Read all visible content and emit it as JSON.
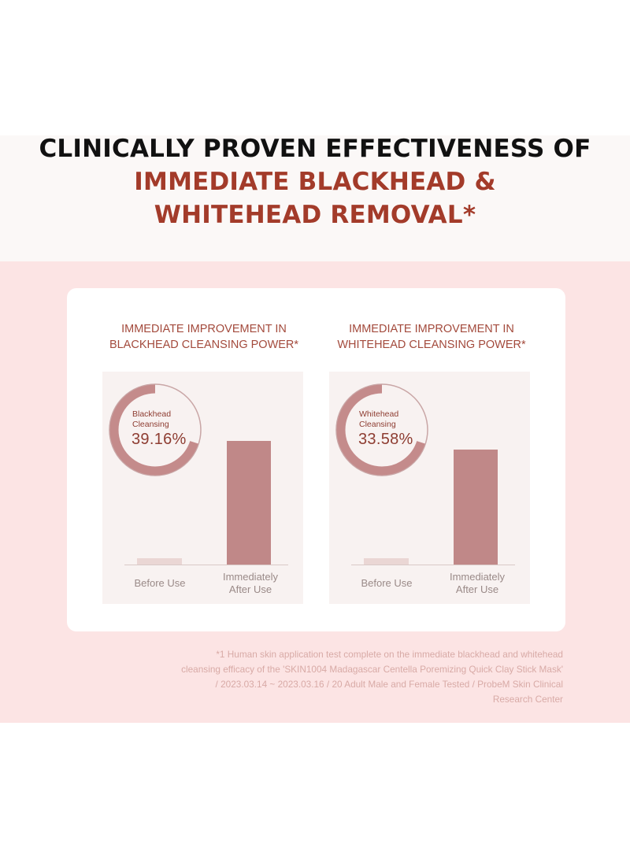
{
  "headline": {
    "line1": "CLINICALLY PROVEN EFFECTIVENESS OF",
    "line2": "IMMEDIATE BLACKHEAD &",
    "line3": "WHITEHEAD REMOVAL*"
  },
  "colors": {
    "headline_dark": "#111111",
    "headline_accent": "#a33b2a",
    "band_pink": "#fce4e4",
    "ring_track": "#c9a6a6",
    "ring_fill": "#c48b8b",
    "bar_before": "#ead6d4",
    "bar_after": "#c08888",
    "label_text": "#8e3d32"
  },
  "chart_data": [
    {
      "type": "bar",
      "title_line1": "IMMEDIATE IMPROVEMENT IN",
      "title_line2": "BLACKHEAD CLEANSING POWER*",
      "categories": [
        "Before Use",
        "Immediately After Use"
      ],
      "category_lines": [
        [
          "Before Use"
        ],
        [
          "Immediately",
          "After Use"
        ]
      ],
      "values": [
        5,
        100
      ],
      "badge": {
        "label_line1": "Blackhead",
        "label_line2": "Cleansing",
        "value": "39.16%",
        "percent": 39.16
      }
    },
    {
      "type": "bar",
      "title_line1": "IMMEDIATE IMPROVEMENT IN",
      "title_line2": "WHITEHEAD CLEANSING POWER*",
      "categories": [
        "Before Use",
        "Immediately After Use"
      ],
      "category_lines": [
        [
          "Before Use"
        ],
        [
          "Immediately",
          "After Use"
        ]
      ],
      "values": [
        5,
        100
      ],
      "badge": {
        "label_line1": "Whitehead",
        "label_line2": "Cleansing",
        "value": "33.58%",
        "percent": 33.58
      }
    }
  ],
  "footnote": [
    "*1 Human skin application test complete on the immediate blackhead and whitehead",
    "cleansing efficacy of the 'SKIN1004 Madagascar Centella Poremizing Quick Clay Stick Mask'",
    "/ 2023.03.14 ~ 2023.03.16 / 20 Adult Male and Female Tested / ProbeM Skin Clinical",
    "Research Center"
  ]
}
